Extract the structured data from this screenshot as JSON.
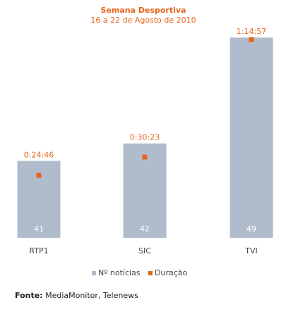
{
  "chart_data": {
    "type": "bar",
    "title": "Semana Desportiva",
    "subtitle": "16 a 22 de Agosto de 2010",
    "categories": [
      "RTP1",
      "SIC",
      "TVI"
    ],
    "series": [
      {
        "name": "Nº notícias",
        "values": [
          41,
          42,
          49
        ],
        "labels": [
          "41",
          "42",
          "49"
        ],
        "color": "#b0bccb"
      },
      {
        "name": "Duração",
        "values": [
          "0:24:46",
          "0:30:23",
          "1:14:57"
        ],
        "values_seconds": [
          1486,
          1823,
          4497
        ],
        "labels": [
          "0:24:46",
          "0:30:23",
          "1:14:57"
        ],
        "color": "#e8641e"
      }
    ],
    "bar_heights_relative": [
      0.384,
      0.471,
      1.0
    ],
    "marker_heights_relative": [
      0.312,
      0.403,
      0.99
    ],
    "legend_position": "bottom",
    "grid": false,
    "colors": {
      "title": "#e8641e",
      "text": "#444444",
      "bar_label": "#ffffff"
    }
  },
  "source": {
    "prefix": "Fonte:",
    "text": " MediaMonitor, Telenews"
  }
}
